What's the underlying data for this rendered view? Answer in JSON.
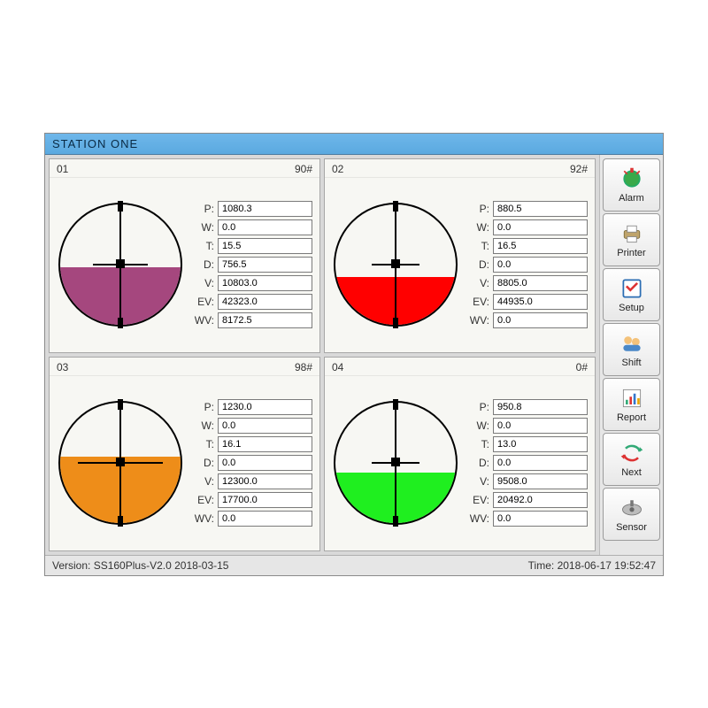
{
  "title": "STATION ONE",
  "status": {
    "version_label": "Version:",
    "version": "SS160Plus-V2.0 2018-03-15",
    "time_label": "Time:",
    "time": "2018-06-17  19:52:47"
  },
  "colors": {
    "titlebar_bg": "#5aa9e0",
    "panel_bg": "#f7f7f3",
    "app_bg": "#d9d9d9",
    "border": "#a7a7a7"
  },
  "reading_labels": [
    "P:",
    "W:",
    "T:",
    "D:",
    "V:",
    "EV:",
    "WV:"
  ],
  "tanks": [
    {
      "id": "01",
      "grade": "90#",
      "fill_color": "#a5477e",
      "fill_pct": 48,
      "hcross_pct": 45,
      "values": {
        "P": "1080.3",
        "W": "0.0",
        "T": "15.5",
        "D": "756.5",
        "V": "10803.0",
        "EV": "42323.0",
        "WV": "8172.5"
      }
    },
    {
      "id": "02",
      "grade": "92#",
      "fill_color": "#ff0000",
      "fill_pct": 40,
      "hcross_pct": 40,
      "values": {
        "P": "880.5",
        "W": "0.0",
        "T": "16.5",
        "D": "0.0",
        "V": "8805.0",
        "EV": "44935.0",
        "WV": "0.0"
      }
    },
    {
      "id": "03",
      "grade": "98#",
      "fill_color": "#ee8d19",
      "fill_pct": 55,
      "hcross_pct": 70,
      "values": {
        "P": "1230.0",
        "W": "0.0",
        "T": "16.1",
        "D": "0.0",
        "V": "12300.0",
        "EV": "17700.0",
        "WV": "0.0"
      }
    },
    {
      "id": "04",
      "grade": "0#",
      "fill_color": "#1fef1f",
      "fill_pct": 42,
      "hcross_pct": 40,
      "values": {
        "P": "950.8",
        "W": "0.0",
        "T": "13.0",
        "D": "0.0",
        "V": "9508.0",
        "EV": "20492.0",
        "WV": "0.0"
      }
    }
  ],
  "sidebar": [
    {
      "key": "alarm",
      "label": "Alarm"
    },
    {
      "key": "printer",
      "label": "Printer"
    },
    {
      "key": "setup",
      "label": "Setup"
    },
    {
      "key": "shift",
      "label": "Shift"
    },
    {
      "key": "report",
      "label": "Report"
    },
    {
      "key": "next",
      "label": "Next"
    },
    {
      "key": "sensor",
      "label": "Sensor"
    }
  ]
}
